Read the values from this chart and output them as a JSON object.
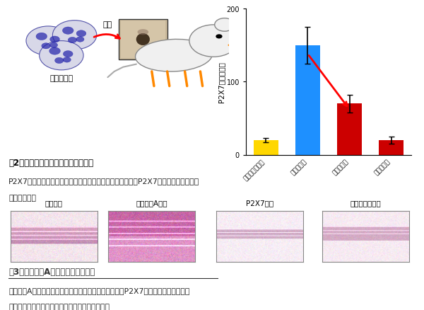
{
  "bar_values": [
    20,
    150,
    70,
    20
  ],
  "bar_colors": [
    "#FFD700",
    "#1E90FF",
    "#CC0000",
    "#CC0000"
  ],
  "bar_errors": [
    3,
    25,
    12,
    5
  ],
  "bar_labels": [
    "皮膚マスト細脹",
    "皮膚移入前",
    "移入３日後",
    "移入７日後"
  ],
  "ylabel": "P2X7発現レベル",
  "ylim": [
    0,
    200
  ],
  "yticks": [
    0,
    100,
    200
  ],
  "fig2_title": "図2　マスト細胞の皮膚への移植実験",
  "fig2_caption_line1": "P2X7受容体を持つマスト細胞をマウスの皮膚に移植するとP2X7受容体のレベルが数",
  "fig2_caption_line2": "日で低下する",
  "fig3_title": "図3　ビタミンAの過剰による皮膚炎",
  "fig3_caption_line1": "ビタミンA過剰によって皮膚に炎症が引き起こされる。P2X7受容体やマスト細胞を",
  "fig3_caption_line2": "持たないマウスでは、皮膚の炎症が起こらない。",
  "hist_labels": [
    "正常皮膚",
    "ビタミンA過剰",
    "P2X7欠損",
    "マスト細胞欠損"
  ],
  "bg_color": "#FFFFFF",
  "mast_label": "マスト細胞",
  "transplant_label": "移植"
}
